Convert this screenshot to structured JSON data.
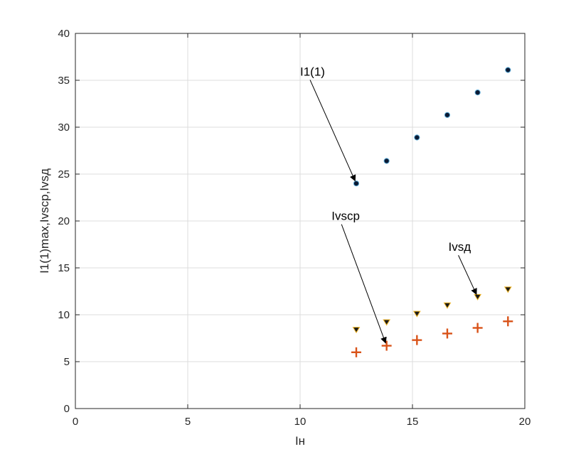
{
  "chart_data": {
    "type": "scatter",
    "title": "",
    "xlabel": "Iн",
    "ylabel": "I1(1)max,Ivscp,Ivsд",
    "xlim": [
      0,
      20
    ],
    "ylim": [
      0,
      40
    ],
    "x_ticks": [
      0,
      5,
      10,
      15,
      20
    ],
    "y_ticks": [
      0,
      5,
      10,
      15,
      20,
      25,
      30,
      35,
      40
    ],
    "grid": true,
    "x": [
      12.5,
      13.85,
      15.2,
      16.55,
      17.9,
      19.25
    ],
    "series": [
      {
        "label": "I1(1)",
        "marker": "circle",
        "color": "#0b1a33",
        "values": [
          24.0,
          26.4,
          28.9,
          31.3,
          33.7,
          36.1
        ]
      },
      {
        "label": "Ivsд",
        "marker": "triangle-down",
        "color": "#1a1a1a",
        "edge_color": "#edb120",
        "values": [
          8.4,
          9.2,
          10.1,
          11.0,
          11.9,
          12.7
        ]
      },
      {
        "label": "Ivscp",
        "marker": "plus",
        "color": "#d95319",
        "values": [
          6.0,
          6.7,
          7.3,
          8.0,
          8.6,
          9.3
        ]
      }
    ],
    "annotations": [
      {
        "text": "I1(1)",
        "text_at": [
          10.0,
          35.5
        ],
        "arrow_to": [
          12.5,
          24.0
        ]
      },
      {
        "text": "Ivscp",
        "text_at": [
          11.4,
          20.1
        ],
        "arrow_to": [
          13.85,
          6.7
        ]
      },
      {
        "text": "Ivsд",
        "text_at": [
          16.6,
          16.8
        ],
        "arrow_to": [
          17.9,
          11.9
        ]
      }
    ]
  }
}
